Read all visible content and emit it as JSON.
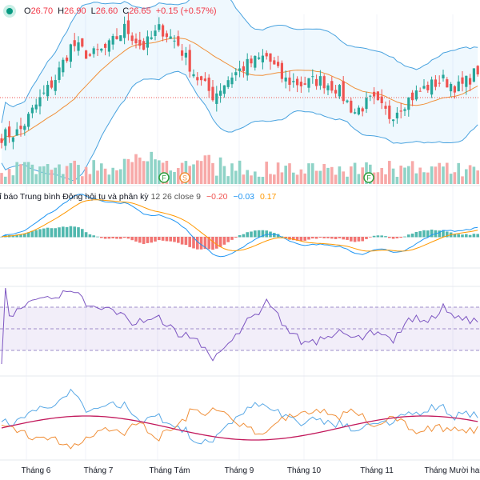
{
  "legend": {
    "open_label": "O",
    "open": "26.70",
    "high_label": "H",
    "high": "26.90",
    "low_label": "L",
    "low": "26.60",
    "close_label": "C",
    "close": "26.65",
    "change": "+0.15 (+0.57%)"
  },
  "macd_legend": {
    "title": "Chỉ báo Trung bình Động hội tụ và phân kỳ",
    "params": "12 26 close 9",
    "v1": "−0.20",
    "v2": "−0.03",
    "v3": "0.17"
  },
  "markers": [
    {
      "label": "F",
      "type": "earnings"
    },
    {
      "label": "S",
      "type": "split"
    },
    {
      "label": "F",
      "type": "earnings"
    }
  ],
  "x_axis": [
    "Tháng 6",
    "Tháng 7",
    "Tháng Tám",
    "Tháng 9",
    "Tháng 10",
    "Tháng 11",
    "Tháng Mười hai"
  ],
  "colors": {
    "up": "#26a69a",
    "down": "#ef5350",
    "bb": "#4aa3df",
    "ma": "#f0903a",
    "rsi": "#7e57c2",
    "macd": "#2196f3",
    "signal": "#ff9800"
  },
  "chart_data": {
    "type": "candlestick",
    "close_keypoints": [
      25.0,
      25.1,
      25.8,
      26.4,
      27.3,
      27.0,
      27.2,
      27.7,
      27.2,
      27.7,
      27.3,
      26.5,
      26.0,
      26.5,
      26.8,
      27.0,
      26.4,
      26.3,
      26.4,
      26.2,
      25.6,
      25.9,
      25.5,
      25.9,
      26.2,
      26.4,
      26.2,
      26.65
    ],
    "indicators": [
      "Bollinger Bands",
      "Volume",
      "MACD 12 26 9",
      "RSI",
      "Oscillator"
    ]
  }
}
